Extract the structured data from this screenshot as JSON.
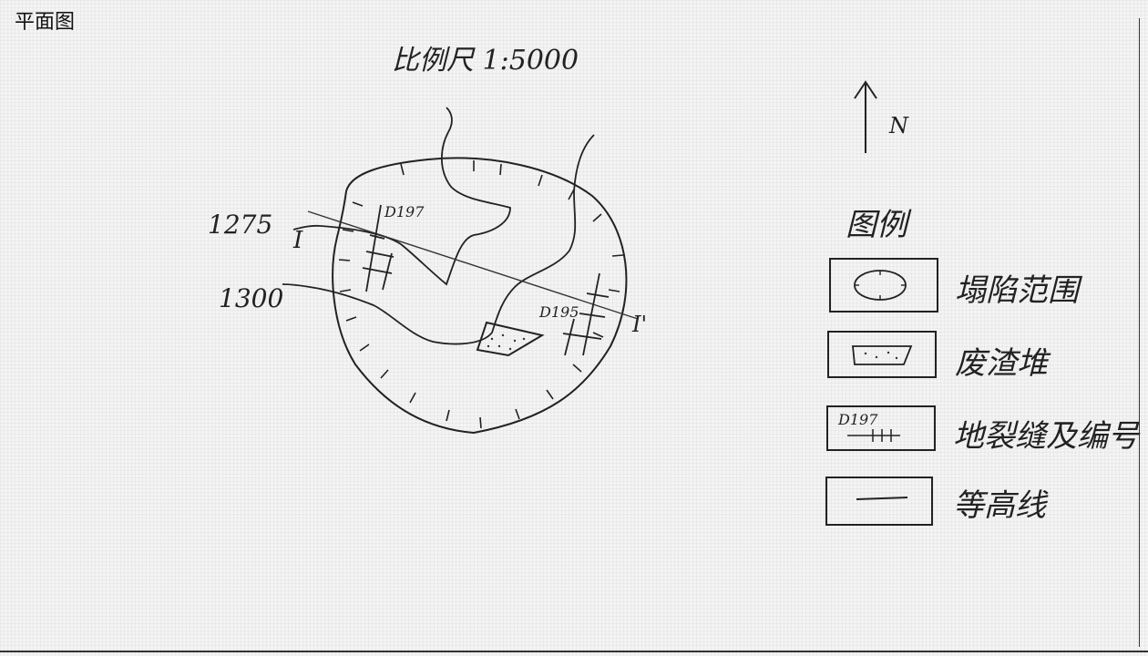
{
  "page_title": "平面图",
  "scale_label": "比例尺 1:5000",
  "north_label": "N",
  "contours": {
    "upper": "1275",
    "lower": "1300"
  },
  "section": {
    "start": "Ⅰ",
    "end": "Ⅰ'"
  },
  "cracks": [
    {
      "label": "D197"
    },
    {
      "label": "D195"
    }
  ],
  "legend": {
    "title": "图例",
    "items": [
      {
        "label": "塌陷范围"
      },
      {
        "label": "废渣堆"
      },
      {
        "label": "地裂缝及编号",
        "sample_text": "D197"
      },
      {
        "label": "等高线"
      }
    ]
  },
  "colors": {
    "ink": "#222222",
    "paper": "#f3f4f3"
  }
}
